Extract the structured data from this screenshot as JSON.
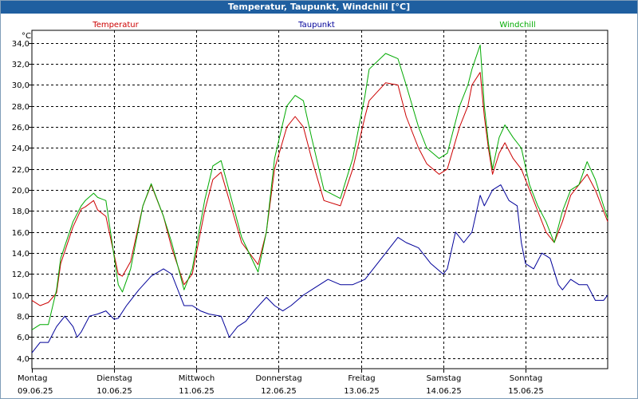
{
  "window": {
    "title": "Temperatur, Taupunkt, Windchill [°C]"
  },
  "chart_data": {
    "type": "line",
    "title": "Temperatur, Taupunkt, Windchill [°C]",
    "ylabel": "°C",
    "ylim": [
      3.0,
      35.2
    ],
    "yticks": [
      4,
      6,
      8,
      10,
      12,
      14,
      16,
      18,
      20,
      22,
      24,
      26,
      28,
      30,
      32,
      34
    ],
    "ytick_labels": [
      "4,0",
      "6,0",
      "8,0",
      "10,0",
      "12,0",
      "14,0",
      "16,0",
      "18,0",
      "20,0",
      "22,0",
      "24,0",
      "26,0",
      "28,0",
      "30,0",
      "32,0",
      "34,0"
    ],
    "xlim": [
      0,
      7
    ],
    "days": [
      {
        "weekday": "Montag",
        "date": "09.06.25"
      },
      {
        "weekday": "Dienstag",
        "date": "10.06.25"
      },
      {
        "weekday": "Mittwoch",
        "date": "11.06.25"
      },
      {
        "weekday": "Donnerstag",
        "date": "12.06.25"
      },
      {
        "weekday": "Freitag",
        "date": "13.06.25"
      },
      {
        "weekday": "Samstag",
        "date": "14.06.25"
      },
      {
        "weekday": "Sonntag",
        "date": "15.06.25"
      }
    ],
    "grid": true,
    "series": [
      {
        "name": "Temperatur",
        "color": "#cc0000",
        "x": [
          0,
          0.1,
          0.2,
          0.3,
          0.35,
          0.5,
          0.6,
          0.65,
          0.75,
          0.8,
          0.9,
          1.05,
          1.1,
          1.2,
          1.35,
          1.45,
          1.6,
          1.7,
          1.85,
          1.95,
          2.1,
          2.2,
          2.3,
          2.55,
          2.75,
          2.85,
          2.95,
          3.1,
          3.2,
          3.3,
          3.4,
          3.55,
          3.75,
          3.9,
          4.05,
          4.1,
          4.3,
          4.45,
          4.55,
          4.7,
          4.8,
          4.95,
          5.05,
          5.2,
          5.3,
          5.35,
          5.45,
          5.5,
          5.55,
          5.6,
          5.68,
          5.75,
          5.85,
          5.95,
          6.05,
          6.15,
          6.25,
          6.35,
          6.45,
          6.55,
          6.65,
          6.75,
          6.85,
          6.95,
          7.0
        ],
        "y": [
          9.5,
          9.0,
          9.3,
          10.2,
          13.0,
          16.5,
          18.2,
          18.4,
          19.0,
          18.1,
          17.5,
          12.0,
          11.8,
          13.2,
          18.5,
          20.5,
          17.5,
          14.5,
          11.0,
          12.0,
          18.0,
          21.0,
          21.7,
          15.0,
          12.9,
          16.0,
          22.0,
          26.0,
          27.0,
          26.0,
          23.0,
          19.0,
          18.5,
          22.0,
          27.0,
          28.5,
          30.2,
          30.0,
          27.0,
          24.0,
          22.5,
          21.5,
          22.0,
          26.0,
          28.0,
          30.0,
          31.2,
          27.0,
          24.0,
          21.5,
          23.5,
          24.5,
          23.0,
          22.0,
          20.0,
          18.0,
          16.0,
          15.0,
          17.0,
          19.5,
          20.5,
          21.5,
          20.0,
          18.0,
          17.0
        ]
      },
      {
        "name": "Taupunkt",
        "color": "#000099",
        "x": [
          0,
          0.1,
          0.2,
          0.3,
          0.4,
          0.5,
          0.55,
          0.6,
          0.7,
          0.8,
          0.9,
          1.0,
          1.05,
          1.15,
          1.3,
          1.45,
          1.6,
          1.7,
          1.85,
          1.95,
          2.05,
          2.15,
          2.3,
          2.4,
          2.5,
          2.6,
          2.7,
          2.85,
          2.95,
          3.05,
          3.15,
          3.3,
          3.4,
          3.6,
          3.75,
          3.9,
          4.05,
          4.15,
          4.3,
          4.45,
          4.55,
          4.7,
          4.85,
          5.0,
          5.05,
          5.15,
          5.25,
          5.35,
          5.45,
          5.5,
          5.6,
          5.7,
          5.8,
          5.9,
          5.95,
          6.0,
          6.1,
          6.2,
          6.3,
          6.4,
          6.45,
          6.55,
          6.65,
          6.75,
          6.85,
          6.95,
          7.0
        ],
        "y": [
          4.5,
          5.5,
          5.5,
          7.0,
          8.0,
          7.0,
          6.0,
          6.5,
          8.0,
          8.2,
          8.5,
          7.7,
          7.8,
          9.0,
          10.5,
          11.8,
          12.5,
          12.0,
          9.0,
          9.0,
          8.5,
          8.2,
          8.0,
          6.0,
          7.0,
          7.5,
          8.5,
          9.8,
          9.0,
          8.5,
          9.0,
          10.0,
          10.5,
          11.5,
          11.0,
          11.0,
          11.5,
          12.5,
          14.0,
          15.5,
          15.0,
          14.5,
          13.0,
          12.0,
          12.5,
          16.0,
          15.0,
          16.0,
          19.5,
          18.5,
          20.0,
          20.5,
          19.0,
          18.5,
          15.0,
          13.0,
          12.5,
          14.0,
          13.5,
          11.0,
          10.5,
          11.5,
          11.0,
          11.0,
          9.5,
          9.5,
          10.0
        ]
      },
      {
        "name": "Windchill",
        "color": "#00aa00",
        "x": [
          0,
          0.1,
          0.2,
          0.3,
          0.35,
          0.5,
          0.6,
          0.65,
          0.75,
          0.8,
          0.9,
          1.05,
          1.1,
          1.2,
          1.35,
          1.45,
          1.6,
          1.7,
          1.85,
          1.95,
          2.1,
          2.2,
          2.3,
          2.55,
          2.75,
          2.85,
          2.95,
          3.1,
          3.2,
          3.3,
          3.4,
          3.55,
          3.75,
          3.9,
          4.05,
          4.1,
          4.3,
          4.45,
          4.55,
          4.7,
          4.8,
          4.95,
          5.05,
          5.2,
          5.3,
          5.35,
          5.45,
          5.5,
          5.55,
          5.6,
          5.68,
          5.75,
          5.85,
          5.95,
          6.05,
          6.15,
          6.25,
          6.35,
          6.45,
          6.55,
          6.65,
          6.75,
          6.85,
          6.95,
          7.0
        ],
        "y": [
          6.7,
          7.2,
          7.2,
          10.5,
          13.5,
          17.0,
          18.5,
          19.0,
          19.7,
          19.3,
          19.0,
          11.0,
          10.3,
          12.5,
          18.5,
          20.6,
          17.5,
          15.0,
          10.5,
          12.5,
          19.0,
          22.3,
          22.8,
          15.5,
          12.2,
          16.0,
          23.0,
          28.0,
          29.0,
          28.5,
          25.0,
          20.0,
          19.2,
          23.0,
          29.0,
          31.5,
          33.0,
          32.5,
          30.0,
          26.0,
          24.0,
          23.0,
          23.5,
          28.0,
          30.0,
          31.5,
          33.8,
          28.0,
          24.5,
          22.0,
          25.0,
          26.2,
          25.0,
          24.0,
          20.5,
          18.5,
          17.0,
          15.0,
          18.0,
          20.0,
          20.5,
          22.7,
          21.0,
          18.5,
          17.3
        ]
      }
    ]
  }
}
